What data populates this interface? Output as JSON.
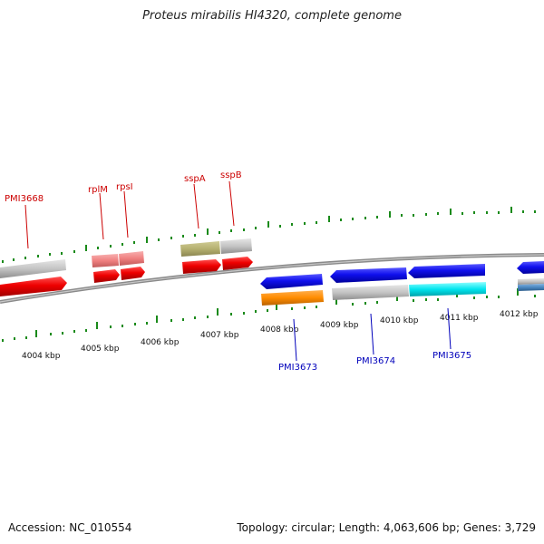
{
  "title": "Proteus mirabilis HI4320, complete genome",
  "footer": {
    "accession": "Accession: NC_010554",
    "summary": "Topology: circular; Length: 4,063,606 bp; Genes: 3,729"
  },
  "colors": {
    "backbone": "#808080",
    "tick": "#1a8a1a",
    "forward_label": "#cc0000",
    "reverse_label": "#0000bb",
    "red": "#ee0000",
    "pink": "#f08080",
    "olive": "#b5b070",
    "grey": "#c0c0c0",
    "blue": "#1010ee",
    "orange": "#ff8c00",
    "cyan": "#00e5ee",
    "steel": "#4a88c0"
  },
  "scale": {
    "labels": [
      "4004 kbp",
      "4005 kbp",
      "4006 kbp",
      "4007 kbp",
      "4008 kbp",
      "4009 kbp",
      "4010 kbp",
      "4011 kbp",
      "4012 kbp"
    ]
  },
  "forward_labels": [
    "PMI3668",
    "rplM",
    "rpsI",
    "sspA",
    "sspB"
  ],
  "reverse_labels": [
    "PMI3673",
    "PMI3674",
    "PMI3675"
  ]
}
